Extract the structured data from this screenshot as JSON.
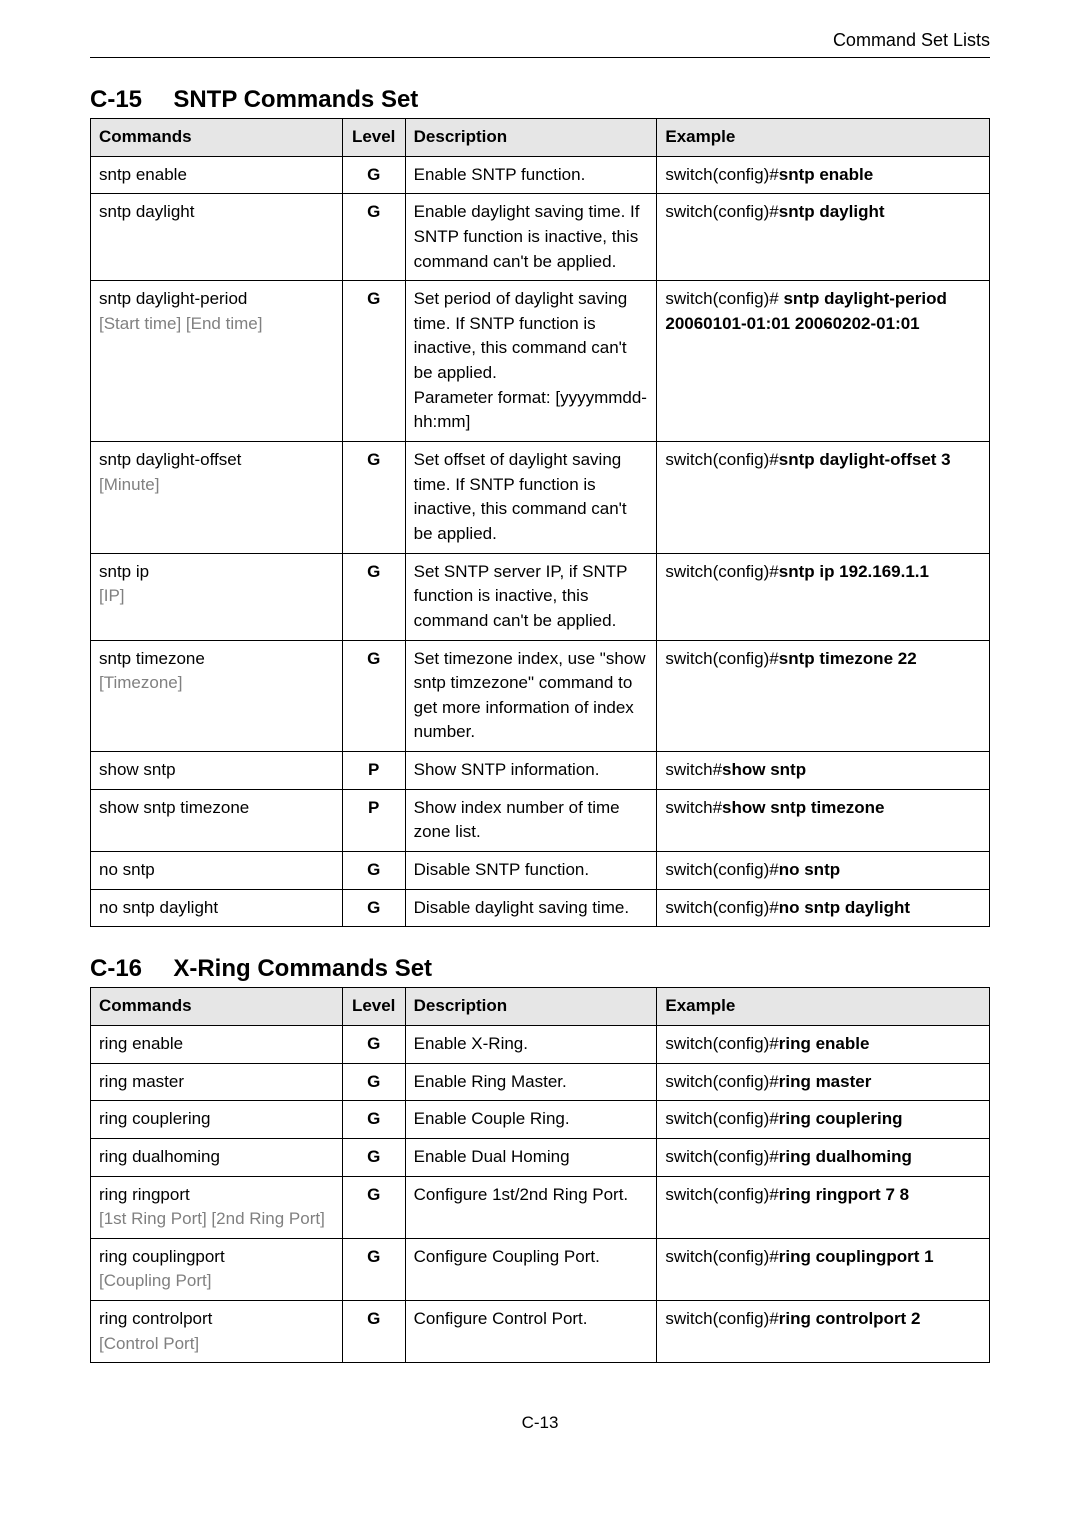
{
  "header": "Command Set Lists",
  "page_num": "C-13",
  "colors": {
    "header_bg": "#e6e6e6",
    "border": "#000000",
    "param_text": "#808080",
    "body_text": "#000000",
    "page_bg": "#ffffff"
  },
  "sections": [
    {
      "number": "C-15",
      "title": "SNTP Commands Set",
      "headers": {
        "c1": "Commands",
        "c2": "Level",
        "c3": "Description",
        "c4": "Example"
      },
      "rows": [
        {
          "cmd_main": "sntp enable",
          "cmd_param": "",
          "level": "G",
          "desc": "Enable SNTP function.",
          "ex_pre": "switch(config)#",
          "ex_bold": "sntp enable"
        },
        {
          "cmd_main": "sntp daylight",
          "cmd_param": "",
          "level": "G",
          "desc": "Enable daylight saving time. If SNTP function is inactive, this command can't be applied.",
          "ex_pre": "switch(config)#",
          "ex_bold": "sntp daylight"
        },
        {
          "cmd_main": "sntp daylight-period",
          "cmd_param": "[Start time] [End time]",
          "level": "G",
          "desc": "Set period of daylight saving time. If SNTP function is inactive, this command can't be applied.\nParameter format: [yyyymmdd-hh:mm]",
          "ex_pre": "switch(config)# ",
          "ex_bold": "sntp daylight-period 20060101-01:01 20060202-01:01"
        },
        {
          "cmd_main": "sntp daylight-offset",
          "cmd_param": "[Minute]",
          "level": "G",
          "desc": "Set offset of daylight saving time. If SNTP function is inactive, this command can't be applied.",
          "ex_pre": "switch(config)#",
          "ex_bold": "sntp daylight-offset 3"
        },
        {
          "cmd_main": "sntp ip",
          "cmd_param": "[IP]",
          "level": "G",
          "desc": "Set SNTP server IP, if SNTP function is inactive, this command can't be applied.",
          "ex_pre": "switch(config)#",
          "ex_bold": "sntp ip 192.169.1.1"
        },
        {
          "cmd_main": "sntp timezone",
          "cmd_param": "[Timezone]",
          "level": "G",
          "desc": "Set timezone index, use \"show sntp timzezone\" command to get more information of index number.",
          "ex_pre": "switch(config)#",
          "ex_bold": "sntp timezone 22"
        },
        {
          "cmd_main": "show sntp",
          "cmd_param": "",
          "level": "P",
          "desc": "Show SNTP information.",
          "ex_pre": "switch#",
          "ex_bold": "show sntp"
        },
        {
          "cmd_main": "show sntp timezone",
          "cmd_param": "",
          "level": "P",
          "desc": "Show index number of time zone list.",
          "ex_pre": "switch#",
          "ex_bold": "show sntp timezone"
        },
        {
          "cmd_main": "no sntp",
          "cmd_param": "",
          "level": "G",
          "desc": "Disable SNTP function.",
          "ex_pre": "switch(config)#",
          "ex_bold": "no sntp"
        },
        {
          "cmd_main": "no sntp daylight",
          "cmd_param": "",
          "level": "G",
          "desc": "Disable daylight saving time.",
          "ex_pre": "switch(config)#",
          "ex_bold": "no sntp daylight"
        }
      ]
    },
    {
      "number": "C-16",
      "title": "X-Ring Commands Set",
      "headers": {
        "c1": "Commands",
        "c2": "Level",
        "c3": "Description",
        "c4": "Example"
      },
      "rows": [
        {
          "cmd_main": "ring enable",
          "cmd_param": "",
          "level": "G",
          "desc": "Enable X-Ring.",
          "ex_pre": "switch(config)#",
          "ex_bold": "ring enable"
        },
        {
          "cmd_main": "ring master",
          "cmd_param": "",
          "level": "G",
          "desc": "Enable Ring Master.",
          "ex_pre": "switch(config)#",
          "ex_bold": "ring master"
        },
        {
          "cmd_main": "ring couplering",
          "cmd_param": "",
          "level": "G",
          "desc": "Enable Couple Ring.",
          "ex_pre": "switch(config)#",
          "ex_bold": "ring couplering"
        },
        {
          "cmd_main": "ring dualhoming",
          "cmd_param": "",
          "level": "G",
          "desc": "Enable Dual Homing",
          "ex_pre": "switch(config)#",
          "ex_bold": "ring dualhoming"
        },
        {
          "cmd_main": "ring ringport",
          "cmd_param": "[1st Ring Port] [2nd Ring Port]",
          "level": "G",
          "desc": "Configure 1st/2nd Ring Port.",
          "ex_pre": "switch(config)#",
          "ex_bold": "ring ringport 7 8"
        },
        {
          "cmd_main": "ring couplingport",
          "cmd_param": "[Coupling Port]",
          "level": "G",
          "desc": "Configure Coupling Port.",
          "ex_pre": "switch(config)#",
          "ex_bold": "ring couplingport 1"
        },
        {
          "cmd_main": "ring controlport",
          "cmd_param": "[Control Port]",
          "level": "G",
          "desc": "Configure Control Port.",
          "ex_pre": "switch(config)#",
          "ex_bold": "ring controlport 2"
        }
      ]
    }
  ]
}
